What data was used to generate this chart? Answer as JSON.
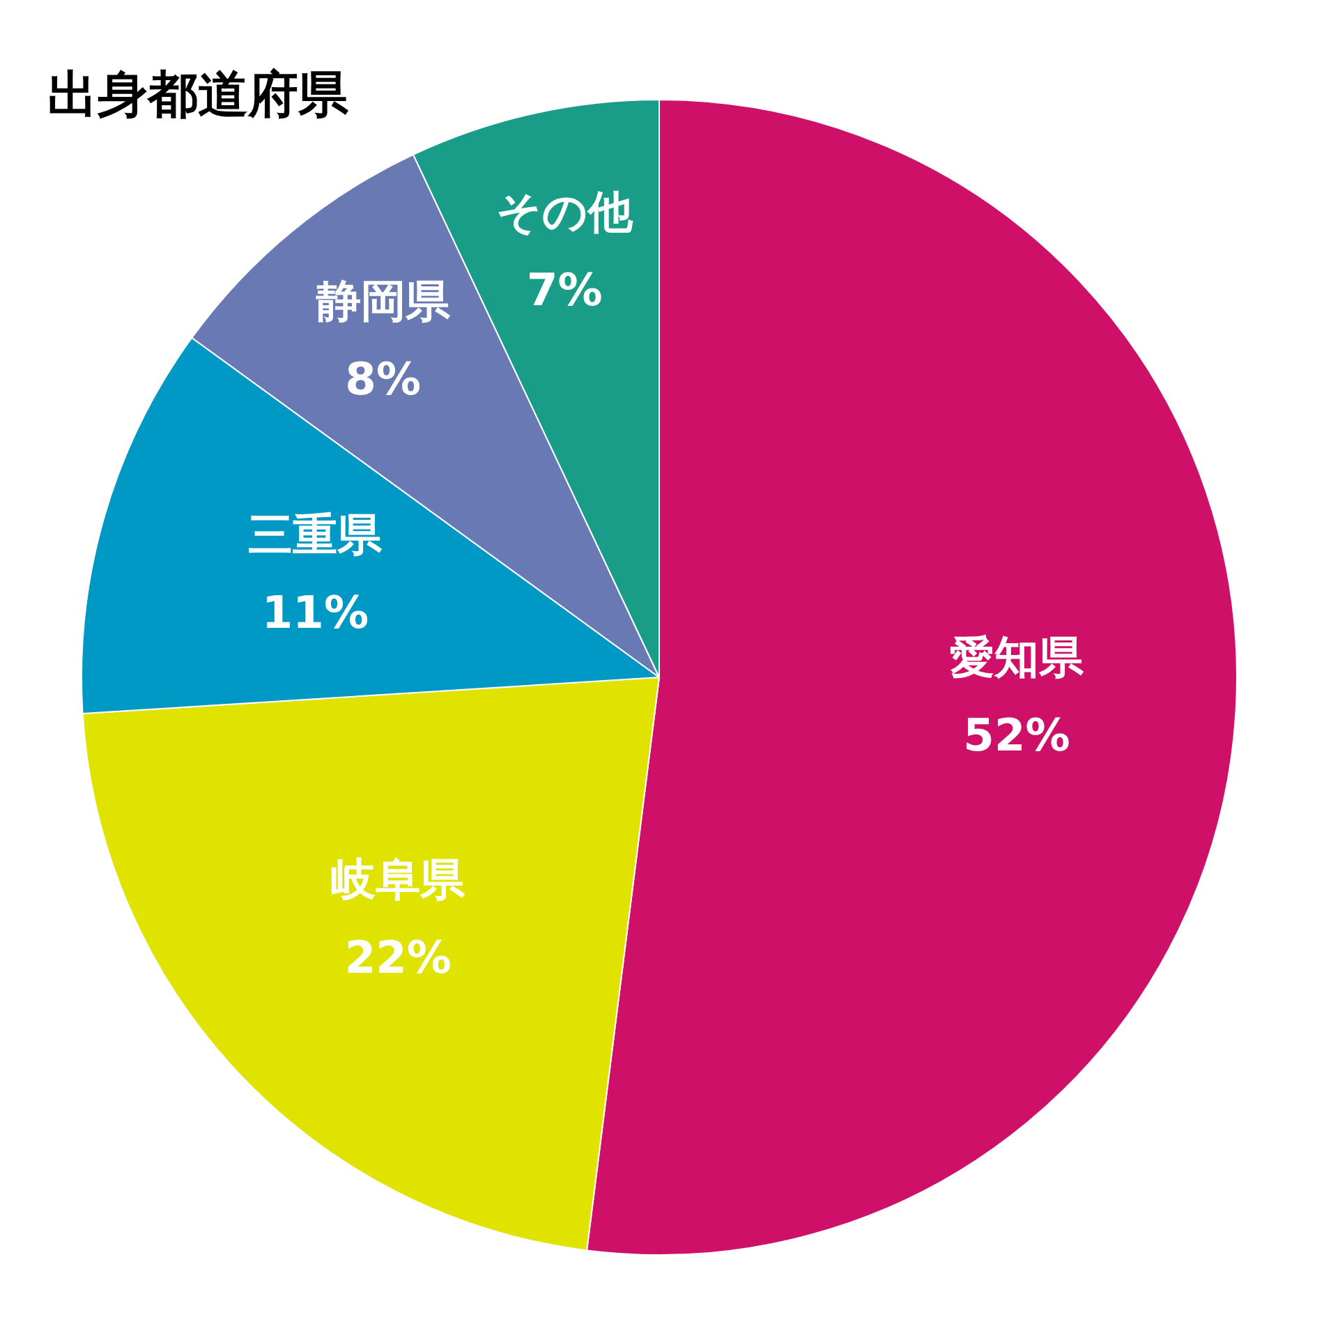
{
  "chart_data": {
    "type": "pie",
    "title": "出身都道府県",
    "categories": [
      "愛知県",
      "岐阜県",
      "三重県",
      "静岡県",
      "その他"
    ],
    "values": [
      52,
      22,
      11,
      8,
      7
    ],
    "value_labels": [
      "52%",
      "22%",
      "11%",
      "8%",
      "7%"
    ],
    "colors": [
      "#cf1068",
      "#e0e200",
      "#0098c4",
      "#6879b3",
      "#1a9d88"
    ],
    "legend": false
  }
}
